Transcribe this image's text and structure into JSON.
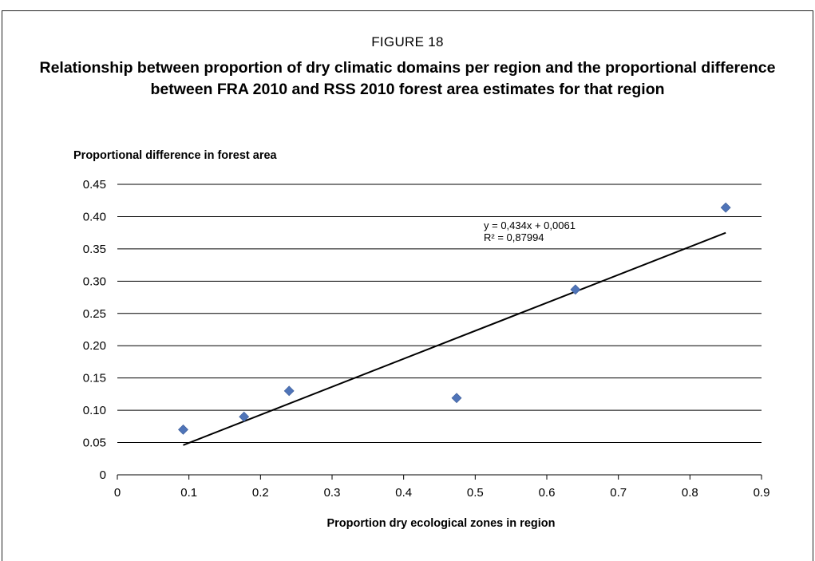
{
  "figure": {
    "label": "FIGURE 18",
    "title": "Relationship between proportion of dry climatic domains per region and the proportional difference between FRA 2010 and RSS 2010 forest area estimates for that region"
  },
  "chart_data": {
    "type": "scatter",
    "ylabel": "Proportional difference in forest area",
    "xlabel": "Proportion dry ecological zones in region",
    "xlim": [
      0,
      0.9
    ],
    "ylim": [
      0,
      0.45
    ],
    "x_ticks": [
      "0",
      "0.1",
      "0.2",
      "0.3",
      "0.4",
      "0.5",
      "0.6",
      "0.7",
      "0.8",
      "0.9"
    ],
    "y_ticks": [
      "0",
      "0.05",
      "0.10",
      "0.15",
      "0.20",
      "0.25",
      "0.30",
      "0.35",
      "0.40",
      "0.45"
    ],
    "grid": "horizontal",
    "marker_color": "#4F74B8",
    "series": [
      {
        "x": [
          0.092,
          0.177,
          0.24,
          0.474,
          0.64,
          0.85
        ],
        "y": [
          0.07,
          0.09,
          0.13,
          0.119,
          0.287,
          0.414
        ]
      }
    ],
    "trendline": {
      "slope": 0.434,
      "intercept": 0.0061,
      "x_range": [
        0.092,
        0.85
      ],
      "equation": "y = 0,434x + 0,0061",
      "r_squared": "R² = 0,87994"
    }
  }
}
